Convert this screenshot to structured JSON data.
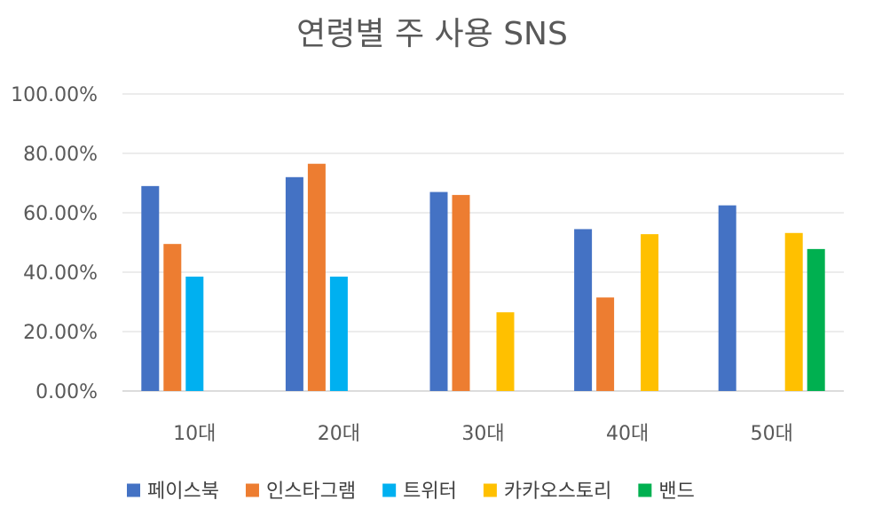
{
  "chart_data": {
    "type": "bar",
    "title": "연령별 주 사용 SNS",
    "xlabel": "",
    "ylabel": "",
    "categories": [
      "10대",
      "20대",
      "30대",
      "40대",
      "50대"
    ],
    "ylim": [
      0,
      1
    ],
    "yticks": [
      "0.00%",
      "20.00%",
      "40.00%",
      "60.00%",
      "80.00%",
      "100.00%"
    ],
    "grid": true,
    "legend_position": "bottom",
    "series": [
      {
        "name": "페이스북",
        "color": "#4472C4",
        "values": [
          0.69,
          0.72,
          0.67,
          0.545,
          0.625
        ]
      },
      {
        "name": "인스타그램",
        "color": "#ED7D31",
        "values": [
          0.495,
          0.765,
          0.66,
          0.315,
          null
        ]
      },
      {
        "name": "트위터",
        "color": "#00B0F0",
        "values": [
          0.385,
          0.385,
          null,
          null,
          null
        ]
      },
      {
        "name": "카카오스토리",
        "color": "#FFC000",
        "values": [
          null,
          null,
          0.265,
          0.528,
          0.532
        ]
      },
      {
        "name": "밴드",
        "color": "#00B050",
        "values": [
          null,
          null,
          null,
          null,
          0.478
        ]
      }
    ]
  }
}
